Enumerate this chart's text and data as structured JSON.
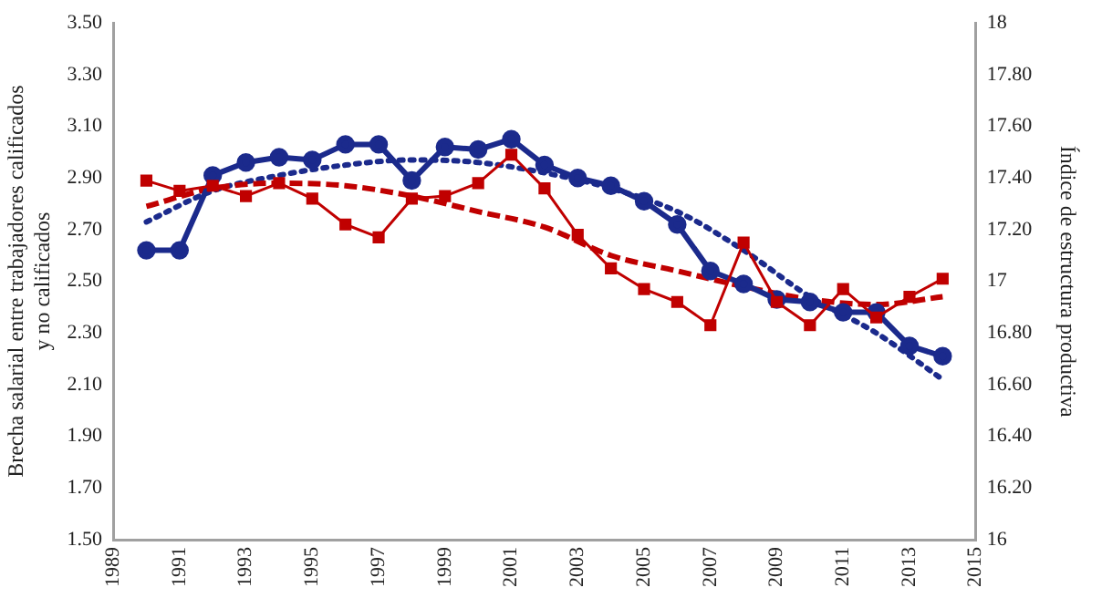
{
  "chart_data": {
    "type": "line",
    "ylabel": "Brecha salarial entre trabajadores calificados\ny no calificados",
    "y2label": "Índice de estructura productiva",
    "x": [
      1990,
      1991,
      1992,
      1993,
      1994,
      1995,
      1996,
      1997,
      1998,
      1999,
      2000,
      2001,
      2002,
      2003,
      2004,
      2005,
      2006,
      2007,
      2008,
      2009,
      2010,
      2011,
      2012,
      2013,
      2014
    ],
    "xlim": [
      1989,
      2015
    ],
    "xticks": [
      1989,
      1991,
      1993,
      1995,
      1997,
      1999,
      2001,
      2003,
      2005,
      2007,
      2009,
      2011,
      2013,
      2015
    ],
    "ylim": [
      1.5,
      3.5
    ],
    "yticks": [
      {
        "value": 1.5,
        "label": "1.50"
      },
      {
        "value": 1.7,
        "label": "1.70"
      },
      {
        "value": 1.9,
        "label": "1.90"
      },
      {
        "value": 2.1,
        "label": "2.10"
      },
      {
        "value": 2.3,
        "label": "2.30"
      },
      {
        "value": 2.5,
        "label": "2.50"
      },
      {
        "value": 2.7,
        "label": "2.70"
      },
      {
        "value": 2.9,
        "label": "2.90"
      },
      {
        "value": 3.1,
        "label": "3.10"
      },
      {
        "value": 3.3,
        "label": "3.30"
      },
      {
        "value": 3.5,
        "label": "3.50"
      }
    ],
    "y2lim": [
      16,
      18
    ],
    "y2ticks": [
      16,
      {
        "value": 16.2,
        "label": "16.20"
      },
      {
        "value": 16.4,
        "label": "16.40"
      },
      {
        "value": 16.6,
        "label": "16.60"
      },
      {
        "value": 16.8,
        "label": "16.80"
      },
      17,
      {
        "value": 17.2,
        "label": "17.20"
      },
      {
        "value": 17.4,
        "label": "17.40"
      },
      {
        "value": 17.6,
        "label": "17.60"
      },
      {
        "value": 17.8,
        "label": "17.80"
      },
      18
    ],
    "grid": false,
    "legend": false,
    "series": [
      {
        "type": "line",
        "color": "#1b2a8c",
        "marker": "circle",
        "line_style": "solid",
        "values": [
          2.62,
          2.62,
          2.91,
          2.96,
          2.98,
          2.97,
          3.03,
          3.03,
          2.89,
          3.02,
          3.01,
          3.05,
          2.95,
          2.9,
          2.87,
          2.81,
          2.72,
          2.54,
          2.49,
          2.43,
          2.42,
          2.38,
          2.38,
          2.25,
          2.21
        ]
      },
      {
        "type": "line",
        "color": "#c00000",
        "marker": "square",
        "line_style": "solid",
        "axis": "y2",
        "values": [
          17.39,
          17.35,
          17.37,
          17.33,
          17.38,
          17.32,
          17.22,
          17.17,
          17.32,
          17.33,
          17.38,
          17.49,
          17.36,
          17.18,
          17.05,
          16.97,
          16.92,
          16.83,
          17.15,
          16.92,
          16.83,
          16.97,
          16.86,
          16.94,
          17.01
        ]
      },
      {
        "type": "line",
        "color": "#1b2a8c",
        "marker": "none",
        "line_style": "dotted",
        "x": [
          1990,
          1992,
          1994,
          1996,
          1998,
          2000,
          2002,
          2004,
          2006,
          2008,
          2010,
          2012,
          2014
        ],
        "values": [
          2.73,
          2.85,
          2.91,
          2.95,
          2.97,
          2.96,
          2.92,
          2.86,
          2.77,
          2.62,
          2.44,
          2.3,
          2.12
        ]
      },
      {
        "type": "line",
        "color": "#c00000",
        "marker": "none",
        "line_style": "dashed",
        "axis": "y2",
        "x": [
          1990,
          1992,
          1994,
          1996,
          1998,
          2000,
          2002,
          2004,
          2006,
          2008,
          2010,
          2012,
          2014
        ],
        "values": [
          17.29,
          17.36,
          17.38,
          17.37,
          17.33,
          17.27,
          17.21,
          17.1,
          17.04,
          16.98,
          16.93,
          16.91,
          16.94
        ]
      }
    ]
  }
}
